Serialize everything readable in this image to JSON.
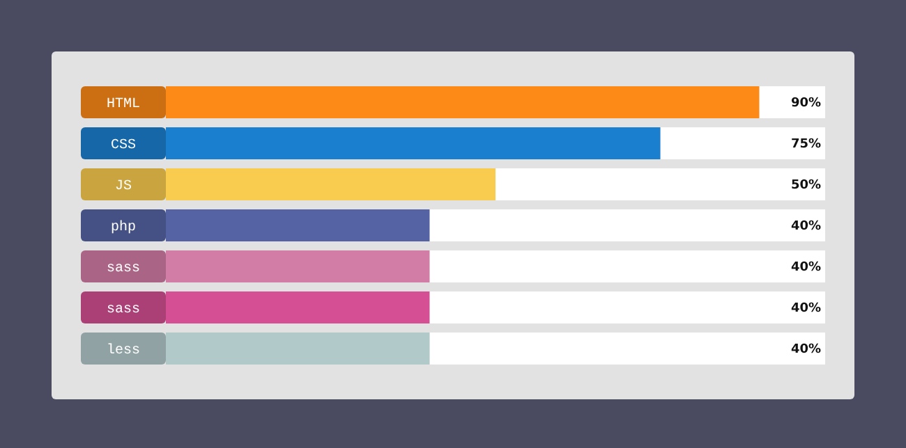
{
  "chart_data": {
    "type": "bar",
    "orientation": "horizontal",
    "categories": [
      "HTML",
      "CSS",
      "JS",
      "php",
      "sass",
      "sass",
      "less"
    ],
    "values": [
      90,
      75,
      50,
      40,
      40,
      40,
      40
    ],
    "colors": [
      "#fd8a16",
      "#1a7fcf",
      "#f9cb4e",
      "#5563a4",
      "#d27da6",
      "#d44f93",
      "#b2c9ca"
    ],
    "value_labels": [
      "90%",
      "75%",
      "50%",
      "40%",
      "40%",
      "40%",
      "40%"
    ],
    "xlim": [
      0,
      100
    ]
  }
}
